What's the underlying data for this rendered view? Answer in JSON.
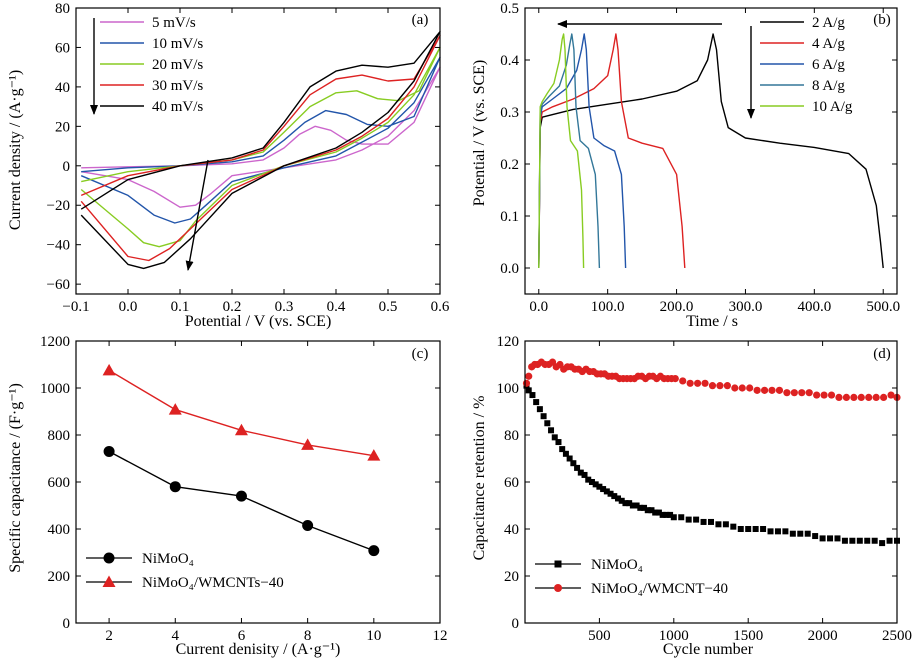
{
  "chart_data": [
    {
      "panel": "(a)",
      "type": "line",
      "xlabel": "Potential / V (vs. SCE)",
      "ylabel": "Current density / (A·g⁻¹)",
      "xlim": [
        -0.1,
        0.6
      ],
      "ylim": [
        -65,
        80
      ],
      "xticks": [
        -0.1,
        0.0,
        0.1,
        0.2,
        0.3,
        0.4,
        0.5,
        0.6
      ],
      "yticks": [
        -60,
        -40,
        -20,
        0,
        20,
        40,
        60,
        80
      ],
      "legend_position": "top-left",
      "series": [
        {
          "name": "5 mV/s",
          "color": "#cc66cc",
          "x": [
            -0.09,
            0.0,
            0.1,
            0.2,
            0.26,
            0.3,
            0.33,
            0.36,
            0.39,
            0.42,
            0.45,
            0.5,
            0.55,
            0.6,
            0.6,
            0.55,
            0.5,
            0.45,
            0.4,
            0.3,
            0.2,
            0.16,
            0.13,
            0.1,
            0.05,
            0.0,
            -0.09
          ],
          "y": [
            -1,
            -0.5,
            0,
            1,
            3,
            9,
            16,
            20,
            18,
            13,
            11,
            11,
            22,
            50,
            50,
            28,
            15,
            8,
            3,
            -1,
            -5,
            -14,
            -20,
            -21,
            -13,
            -7,
            -3
          ]
        },
        {
          "name": "10 mV/s",
          "color": "#2255aa",
          "x": [
            -0.09,
            0.0,
            0.1,
            0.2,
            0.26,
            0.3,
            0.34,
            0.38,
            0.42,
            0.46,
            0.5,
            0.55,
            0.6,
            0.6,
            0.55,
            0.5,
            0.45,
            0.4,
            0.3,
            0.2,
            0.15,
            0.12,
            0.09,
            0.05,
            0.0,
            -0.09
          ],
          "y": [
            -3,
            -1,
            0,
            2,
            5,
            13,
            22,
            28,
            26,
            21,
            20,
            25,
            55,
            55,
            32,
            19,
            12,
            5,
            -1,
            -8,
            -20,
            -27,
            -29,
            -25,
            -15,
            -5
          ]
        },
        {
          "name": "20 mV/s",
          "color": "#88cc22",
          "x": [
            -0.09,
            0.0,
            0.1,
            0.2,
            0.26,
            0.3,
            0.35,
            0.4,
            0.44,
            0.48,
            0.52,
            0.56,
            0.6,
            0.6,
            0.55,
            0.5,
            0.45,
            0.4,
            0.3,
            0.2,
            0.13,
            0.1,
            0.06,
            0.03,
            0.0,
            -0.09
          ],
          "y": [
            -8,
            -3,
            0,
            3,
            7,
            17,
            30,
            37,
            38,
            34,
            33,
            38,
            60,
            60,
            36,
            22,
            14,
            7,
            0,
            -10,
            -28,
            -38,
            -41,
            -39,
            -32,
            -12
          ]
        },
        {
          "name": "30 mV/s",
          "color": "#dd2222",
          "x": [
            -0.09,
            0.0,
            0.1,
            0.2,
            0.26,
            0.3,
            0.35,
            0.4,
            0.45,
            0.5,
            0.55,
            0.6,
            0.6,
            0.55,
            0.5,
            0.45,
            0.4,
            0.3,
            0.2,
            0.12,
            0.08,
            0.04,
            0.0,
            -0.09
          ],
          "y": [
            -15,
            -5,
            0,
            3,
            8,
            20,
            36,
            44,
            46,
            43,
            44,
            66,
            66,
            40,
            24,
            15,
            8,
            0,
            -12,
            -32,
            -42,
            -48,
            -46,
            -18
          ]
        },
        {
          "name": "40 mV/s",
          "color": "#000000",
          "x": [
            -0.09,
            0.0,
            0.1,
            0.2,
            0.26,
            0.3,
            0.35,
            0.4,
            0.45,
            0.5,
            0.55,
            0.6,
            0.6,
            0.55,
            0.5,
            0.45,
            0.4,
            0.3,
            0.2,
            0.12,
            0.07,
            0.03,
            0.0,
            -0.09
          ],
          "y": [
            -22,
            -7,
            0,
            4,
            9,
            22,
            40,
            48,
            51,
            50,
            52,
            68,
            68,
            43,
            27,
            17,
            9,
            0,
            -14,
            -37,
            -49,
            -52,
            -50,
            -25
          ]
        }
      ]
    },
    {
      "panel": "(b)",
      "type": "line",
      "xlabel": "Time / s",
      "ylabel": "Potential / V (vs. SCE)",
      "xlim": [
        -20,
        520
      ],
      "ylim": [
        -0.05,
        0.5
      ],
      "xticks": [
        0,
        100,
        200,
        300,
        400,
        500
      ],
      "yticks": [
        0.0,
        0.1,
        0.2,
        0.3,
        0.4,
        0.5
      ],
      "legend_position": "top-right",
      "series": [
        {
          "name": "2 A/g",
          "color": "#000000",
          "x": [
            0,
            2,
            5,
            20,
            50,
            100,
            150,
            200,
            230,
            245,
            253,
            258,
            265,
            275,
            300,
            350,
            400,
            450,
            475,
            490,
            496,
            500
          ],
          "y": [
            0,
            0.27,
            0.29,
            0.295,
            0.305,
            0.315,
            0.325,
            0.34,
            0.36,
            0.4,
            0.45,
            0.42,
            0.32,
            0.27,
            0.25,
            0.24,
            0.232,
            0.22,
            0.19,
            0.12,
            0.05,
            0
          ]
        },
        {
          "name": "4 A/g",
          "color": "#dd2222",
          "x": [
            0,
            2,
            5,
            20,
            50,
            80,
            100,
            108,
            112,
            115,
            120,
            130,
            150,
            180,
            200,
            208,
            212
          ],
          "y": [
            0,
            0.28,
            0.3,
            0.31,
            0.325,
            0.345,
            0.37,
            0.42,
            0.45,
            0.42,
            0.32,
            0.25,
            0.24,
            0.23,
            0.18,
            0.08,
            0
          ]
        },
        {
          "name": "6 A/g",
          "color": "#2255aa",
          "x": [
            0,
            2,
            5,
            20,
            40,
            55,
            62,
            66,
            69,
            73,
            80,
            95,
            110,
            120,
            124,
            126
          ],
          "y": [
            0,
            0.29,
            0.31,
            0.325,
            0.345,
            0.38,
            0.42,
            0.45,
            0.42,
            0.31,
            0.25,
            0.235,
            0.225,
            0.18,
            0.08,
            0
          ]
        },
        {
          "name": "8 A/g",
          "color": "#337799",
          "x": [
            0,
            2,
            5,
            15,
            30,
            40,
            45,
            48,
            51,
            54,
            60,
            72,
            82,
            86,
            88
          ],
          "y": [
            0,
            0.3,
            0.315,
            0.33,
            0.35,
            0.39,
            0.43,
            0.45,
            0.42,
            0.31,
            0.245,
            0.23,
            0.18,
            0.08,
            0
          ]
        },
        {
          "name": "10 A/g",
          "color": "#88cc22",
          "x": [
            0,
            2,
            5,
            12,
            22,
            30,
            34,
            36,
            38,
            41,
            46,
            56,
            62,
            64,
            65
          ],
          "y": [
            0,
            0.31,
            0.32,
            0.335,
            0.355,
            0.4,
            0.44,
            0.45,
            0.42,
            0.31,
            0.245,
            0.225,
            0.15,
            0.06,
            0
          ]
        }
      ]
    },
    {
      "panel": "(c)",
      "type": "line",
      "xlabel": "Current denisity / (A·g⁻¹)",
      "ylabel": "Specific capacitance / (F·g⁻¹)",
      "xlim": [
        1,
        12
      ],
      "ylim": [
        0,
        1200
      ],
      "xticks": [
        2,
        4,
        6,
        8,
        10,
        12
      ],
      "yticks": [
        0,
        200,
        400,
        600,
        800,
        1000,
        1200
      ],
      "legend_position": "bottom-left",
      "series": [
        {
          "name": "NiMoO₄",
          "color": "#000000",
          "marker": "circle",
          "x": [
            2,
            4,
            6,
            8,
            10
          ],
          "y": [
            730,
            580,
            540,
            415,
            308
          ]
        },
        {
          "name": "NiMoO₄/WMCNTs−40",
          "color": "#dd2222",
          "marker": "triangle",
          "x": [
            2,
            4,
            6,
            8,
            10
          ],
          "y": [
            1075,
            908,
            820,
            758,
            712
          ]
        }
      ]
    },
    {
      "panel": "(d)",
      "type": "scatter",
      "xlabel": "Cycle number",
      "ylabel": "Capacitance retention / %",
      "xlim": [
        0,
        2500
      ],
      "ylim": [
        0,
        120
      ],
      "xticks": [
        500,
        1000,
        1500,
        2000,
        2500
      ],
      "yticks": [
        0,
        20,
        40,
        60,
        80,
        100,
        120
      ],
      "legend_position": "bottom-left",
      "series": [
        {
          "name": "NiMoO₄",
          "color": "#000000",
          "marker": "square",
          "x": [
            10,
            25,
            50,
            75,
            100,
            125,
            150,
            175,
            200,
            225,
            250,
            275,
            300,
            325,
            350,
            375,
            400,
            425,
            450,
            475,
            500,
            525,
            550,
            575,
            600,
            625,
            650,
            675,
            700,
            725,
            750,
            775,
            800,
            825,
            850,
            875,
            900,
            925,
            950,
            975,
            1000,
            1050,
            1100,
            1150,
            1200,
            1250,
            1300,
            1350,
            1400,
            1450,
            1500,
            1550,
            1600,
            1650,
            1700,
            1750,
            1800,
            1850,
            1900,
            1950,
            2000,
            2050,
            2100,
            2150,
            2200,
            2250,
            2300,
            2350,
            2400,
            2450,
            2500
          ],
          "y": [
            101,
            99,
            97,
            94,
            91,
            88,
            85,
            82,
            79,
            77,
            74,
            72,
            70,
            68,
            66,
            64,
            63,
            61,
            60,
            59,
            58,
            57,
            56,
            55,
            54,
            53,
            52,
            51,
            51,
            50,
            50,
            49,
            49,
            48,
            48,
            47,
            47,
            46,
            46,
            46,
            45,
            45,
            44,
            44,
            43,
            43,
            42,
            42,
            41,
            40,
            40,
            40,
            40,
            39,
            39,
            39,
            38,
            38,
            38,
            37,
            36,
            36,
            36,
            35,
            35,
            35,
            35,
            35,
            34,
            35,
            35
          ]
        },
        {
          "name": "NiMoO₄/WMCNT−40",
          "color": "#dd2222",
          "marker": "circle",
          "x": [
            10,
            25,
            45,
            65,
            85,
            110,
            135,
            160,
            185,
            210,
            235,
            260,
            285,
            310,
            335,
            360,
            385,
            410,
            435,
            460,
            485,
            510,
            535,
            560,
            585,
            610,
            635,
            660,
            685,
            710,
            735,
            760,
            785,
            810,
            835,
            860,
            885,
            910,
            935,
            960,
            985,
            1010,
            1060,
            1110,
            1160,
            1210,
            1260,
            1310,
            1360,
            1410,
            1460,
            1510,
            1560,
            1610,
            1660,
            1710,
            1760,
            1810,
            1860,
            1910,
            1960,
            2010,
            2060,
            2110,
            2160,
            2210,
            2260,
            2310,
            2360,
            2410,
            2460,
            2500
          ],
          "y": [
            102,
            105,
            109,
            110,
            110,
            111,
            110,
            110,
            111,
            109,
            110,
            108,
            109,
            109,
            108,
            108,
            107,
            108,
            107,
            107,
            106,
            106,
            106,
            105,
            105,
            105,
            104,
            104,
            104,
            104,
            104,
            105,
            105,
            104,
            105,
            105,
            104,
            105,
            104,
            104,
            104,
            104,
            103,
            102,
            102,
            102,
            101,
            101,
            101,
            100,
            100,
            100,
            99,
            99,
            99,
            99,
            98,
            98,
            98,
            98,
            97,
            97,
            97,
            96,
            96,
            96,
            96,
            96,
            96,
            96,
            97,
            96
          ]
        }
      ]
    }
  ]
}
